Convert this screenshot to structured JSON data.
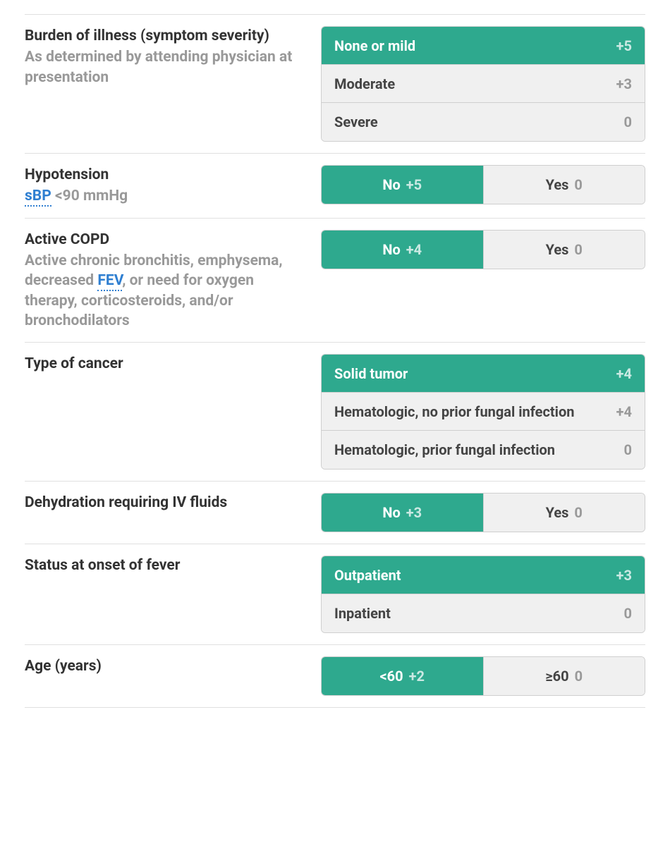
{
  "colors": {
    "selected_bg": "#2ea98e",
    "selected_text": "#ffffff",
    "selected_pts": "rgba(255,255,255,0.75)",
    "unselected_bg": "#f0f0f0",
    "unselected_text": "#444444",
    "unselected_pts": "#999999",
    "title_text": "#333333",
    "desc_text": "#999999",
    "term_link": "#2f7fd1",
    "border": "#cfcfcf",
    "divider": "#e0e0e0",
    "background": "#ffffff"
  },
  "typography": {
    "label_fontsize": 21,
    "option_fontsize": 20,
    "weight": 700
  },
  "layout": {
    "label_col_width": 400,
    "row_padding_v": 16
  },
  "rows": [
    {
      "title": "Burden of illness (symptom severity)",
      "desc": "As determined by attending physician at presentation",
      "terms": [],
      "layout": "vertical",
      "options": [
        {
          "label": "None or mild",
          "pts": "+5",
          "selected": true
        },
        {
          "label": "Moderate",
          "pts": "+3",
          "selected": false
        },
        {
          "label": "Severe",
          "pts": "0",
          "selected": false
        }
      ]
    },
    {
      "title": "Hypotension",
      "desc": "{{term:sBP}} <90 mmHg",
      "terms": [
        "sBP"
      ],
      "layout": "horizontal",
      "options": [
        {
          "label": "No",
          "pts": "+5",
          "selected": true
        },
        {
          "label": "Yes",
          "pts": "0",
          "selected": false
        }
      ]
    },
    {
      "title": "Active COPD",
      "desc": "Active chronic bronchitis, emphysema, decreased {{term:FEV}}, or need for oxygen therapy, corticosteroids, and/or bronchodilators",
      "terms": [
        "FEV"
      ],
      "layout": "horizontal",
      "options": [
        {
          "label": "No",
          "pts": "+4",
          "selected": true
        },
        {
          "label": "Yes",
          "pts": "0",
          "selected": false
        }
      ]
    },
    {
      "title": "Type of cancer",
      "desc": "",
      "terms": [],
      "layout": "vertical",
      "options": [
        {
          "label": "Solid tumor",
          "pts": "+4",
          "selected": true
        },
        {
          "label": "Hematologic, no prior fungal infection",
          "pts": "+4",
          "selected": false
        },
        {
          "label": "Hematologic, prior fungal infection",
          "pts": "0",
          "selected": false
        }
      ]
    },
    {
      "title": "Dehydration requiring IV fluids",
      "desc": "",
      "terms": [],
      "layout": "horizontal",
      "options": [
        {
          "label": "No",
          "pts": "+3",
          "selected": true
        },
        {
          "label": "Yes",
          "pts": "0",
          "selected": false
        }
      ]
    },
    {
      "title": "Status at onset of fever",
      "desc": "",
      "terms": [],
      "layout": "vertical",
      "options": [
        {
          "label": "Outpatient",
          "pts": "+3",
          "selected": true
        },
        {
          "label": "Inpatient",
          "pts": "0",
          "selected": false
        }
      ]
    },
    {
      "title": "Age (years)",
      "desc": "",
      "terms": [],
      "layout": "horizontal",
      "options": [
        {
          "label": "<60",
          "pts": "+2",
          "selected": true
        },
        {
          "label": "≥60",
          "pts": "0",
          "selected": false
        }
      ]
    }
  ]
}
